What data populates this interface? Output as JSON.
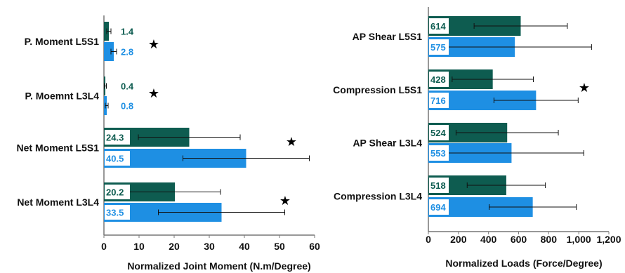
{
  "colors": {
    "series1": "#0e5c50",
    "series2": "#1e8fe3",
    "label1": "#0e5c50",
    "label2": "#1e8fe3"
  },
  "chart_data": [
    {
      "type": "bar",
      "orientation": "horizontal",
      "categories": [
        "P. Moment L5S1",
        "P. Moemnt L3L4",
        "Net Moment L5S1",
        "Net Moment L3L4"
      ],
      "series": [
        {
          "values": [
            1.4,
            0.4,
            24.3,
            20.2
          ],
          "errors": [
            0.6,
            0.3,
            14.5,
            13.0
          ],
          "labels": [
            "1.4",
            "0.4",
            "24.3",
            "20.2"
          ]
        },
        {
          "values": [
            2.8,
            0.8,
            40.5,
            33.5
          ],
          "errors": [
            0.8,
            0.4,
            18.0,
            18.0
          ],
          "labels": [
            "2.8",
            "0.8",
            "40.5",
            "33.5"
          ]
        }
      ],
      "significance": [
        true,
        true,
        true,
        true
      ],
      "significance_symbol": "★",
      "xlabel": "Normalized Joint Moment (N.m/Degree)",
      "xlim": [
        0,
        60
      ],
      "xticks": [
        "0",
        "10",
        "20",
        "30",
        "40",
        "50",
        "60"
      ],
      "grid": false
    },
    {
      "type": "bar",
      "orientation": "horizontal",
      "categories": [
        "AP Shear L5S1",
        "Compression L5S1",
        "AP Shear L3L4",
        "Compression L3L4"
      ],
      "series": [
        {
          "values": [
            614,
            428,
            524,
            518
          ],
          "errors": [
            310,
            270,
            340,
            260
          ],
          "labels": [
            "614",
            "428",
            "524",
            "518"
          ]
        },
        {
          "values": [
            575,
            716,
            553,
            694
          ],
          "errors": [
            510,
            280,
            480,
            290
          ],
          "labels": [
            "575",
            "716",
            "553",
            "694"
          ]
        }
      ],
      "significance": [
        false,
        true,
        false,
        false
      ],
      "significance_symbol": "★",
      "xlabel": "Normalized Loads (Force/Degree)",
      "xlim": [
        0,
        1200
      ],
      "xticks": [
        "0",
        "200",
        "400",
        "600",
        "800",
        "1,000",
        "1,200"
      ],
      "grid": false
    }
  ]
}
